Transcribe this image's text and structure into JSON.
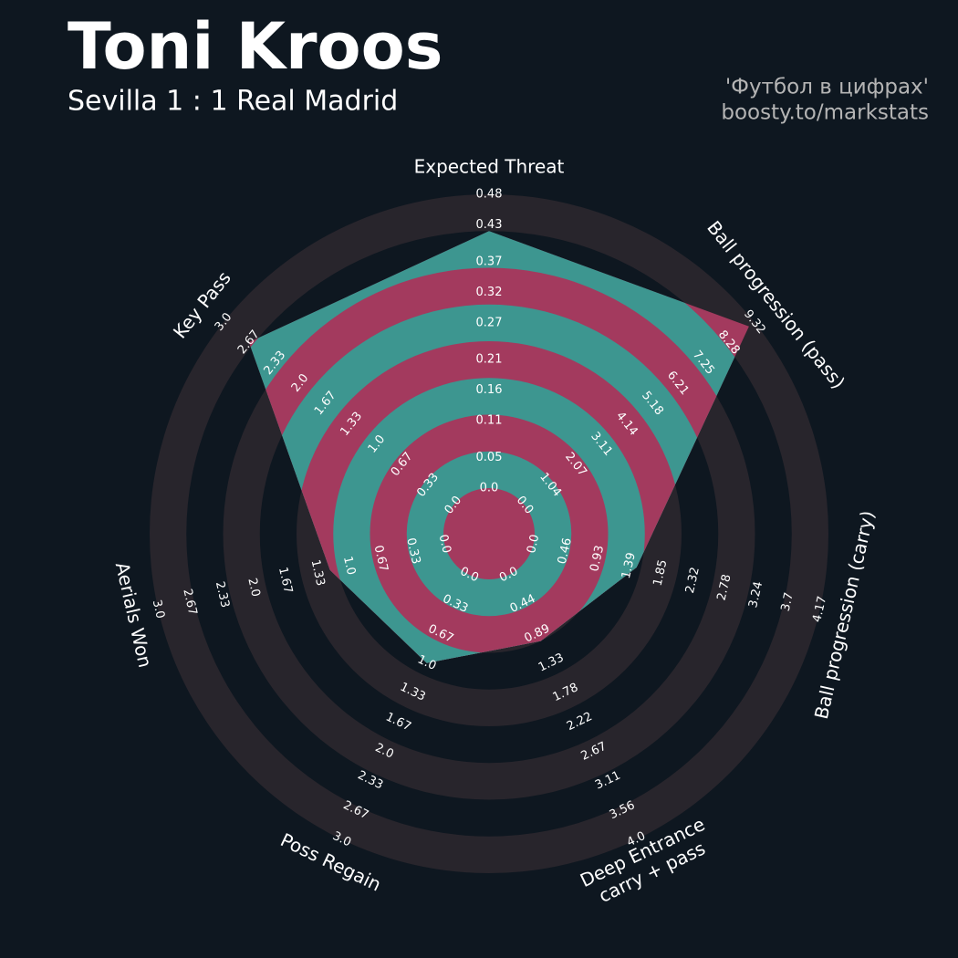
{
  "chart_data": {
    "type": "radar",
    "title": "Toni Kroos",
    "subtitle": "Sevilla 1 : 1 Real Madrid",
    "credits": [
      "'Футбол в цифрах'",
      "boosty.to/markstats"
    ],
    "colors": {
      "background": "#0e1720",
      "rings": "#28252c",
      "polygon": "#3d9690",
      "polygon_rings": "#a33a5e"
    },
    "axes": [
      {
        "name": [
          "Expected Threat"
        ],
        "lim": [
          0,
          0.48
        ],
        "ticks": [
          {
            "value": 0,
            "label": "0.0"
          },
          0.05,
          0.11,
          0.16,
          0.21,
          0.27,
          0.32,
          0.37,
          0.43,
          0.48
        ]
      },
      {
        "name": [
          "Ball progression (pass)"
        ],
        "lim": [
          0,
          9.32
        ],
        "ticks": [
          {
            "value": 0,
            "label": "0.0"
          },
          1.04,
          2.07,
          3.11,
          4.14,
          5.18,
          6.21,
          7.25,
          8.28,
          9.32
        ]
      },
      {
        "name": [
          "Ball progression (carry)"
        ],
        "lim": [
          0,
          4.17
        ],
        "ticks": [
          {
            "value": 0,
            "label": "0.0"
          },
          0.46,
          0.93,
          1.39,
          1.85,
          2.32,
          2.78,
          3.24,
          3.7,
          4.17
        ]
      },
      {
        "name": [
          "Deep Entrance",
          "carry + pass"
        ],
        "lim": [
          0,
          4.0
        ],
        "ticks": [
          {
            "value": 0,
            "label": "0.0"
          },
          0.44,
          0.89,
          1.33,
          1.78,
          2.22,
          2.67,
          3.11,
          3.56,
          {
            "value": 4,
            "label": "4.0"
          }
        ]
      },
      {
        "name": [
          "Poss Regain"
        ],
        "lim": [
          0,
          3.0
        ],
        "ticks": [
          {
            "value": 0,
            "label": "0.0"
          },
          0.33,
          0.67,
          {
            "value": 1,
            "label": "1.0"
          },
          1.33,
          1.67,
          {
            "value": 2,
            "label": "2.0"
          },
          2.33,
          2.67,
          {
            "value": 3,
            "label": "3.0"
          }
        ]
      },
      {
        "name": [
          "Aerials Won"
        ],
        "lim": [
          0,
          3.0
        ],
        "ticks": [
          {
            "value": 0,
            "label": "0.0"
          },
          0.33,
          0.67,
          {
            "value": 1,
            "label": "1.0"
          },
          1.33,
          1.67,
          {
            "value": 2,
            "label": "2.0"
          },
          2.33,
          2.67,
          {
            "value": 3,
            "label": "3.0"
          }
        ]
      },
      {
        "name": [
          "Key Pass"
        ],
        "lim": [
          0,
          3.0
        ],
        "ticks": [
          {
            "value": 0,
            "label": "0.0"
          },
          0.33,
          0.67,
          {
            "value": 1,
            "label": "1.0"
          },
          1.33,
          1.67,
          {
            "value": 2,
            "label": "2.0"
          },
          2.33,
          2.67,
          {
            "value": 3,
            "label": "3.0"
          }
        ]
      }
    ],
    "values": [
      0.42,
      9.1,
      1.5,
      1.0,
      1.0,
      1.2,
      2.67
    ]
  }
}
